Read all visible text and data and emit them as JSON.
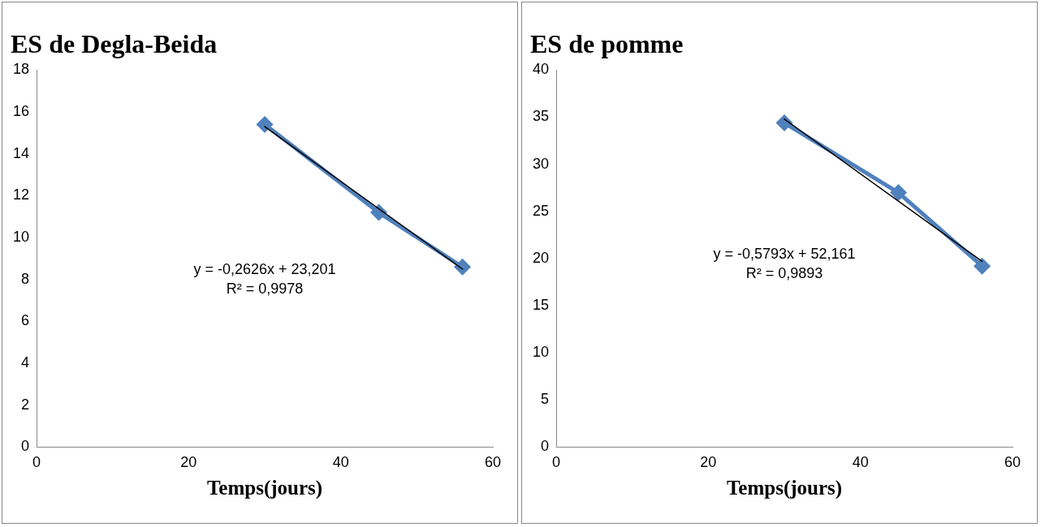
{
  "chart_data": [
    {
      "type": "line",
      "title": "ES de Degla-Beida",
      "xlabel": "Temps(jours)",
      "xlim": [
        0,
        60
      ],
      "xticks": [
        0,
        20,
        40,
        60
      ],
      "ylim": [
        0,
        18
      ],
      "yticks": [
        0,
        2,
        4,
        6,
        8,
        10,
        12,
        14,
        16,
        18
      ],
      "grid": false,
      "legend": false,
      "marker": "diamond",
      "line_style": "solid",
      "series": [
        {
          "color": "#4f81bd",
          "x": [
            30,
            45,
            56
          ],
          "values": [
            15.4,
            11.2,
            8.6
          ]
        },
        {
          "type": "line",
          "color": "#000000",
          "marker": "none",
          "x": [
            30,
            56
          ],
          "values": [
            15.3,
            8.5
          ]
        }
      ],
      "annotations": [
        "y = -0,2626x + 23,201",
        "R² = 0,9978"
      ]
    },
    {
      "type": "line",
      "title": "ES de pomme",
      "xlabel": "Temps(jours)",
      "xlim": [
        0,
        60
      ],
      "xticks": [
        0,
        20,
        40,
        60
      ],
      "ylim": [
        0,
        40
      ],
      "yticks": [
        0,
        5,
        10,
        15,
        20,
        25,
        30,
        35,
        40
      ],
      "grid": false,
      "legend": false,
      "marker": "diamond",
      "line_style": "solid",
      "series": [
        {
          "color": "#4f81bd",
          "x": [
            30,
            45,
            56
          ],
          "values": [
            34.4,
            27,
            19.2
          ]
        },
        {
          "type": "line",
          "color": "#000000",
          "marker": "none",
          "x": [
            30,
            56
          ],
          "values": [
            34.8,
            19.7
          ]
        }
      ],
      "annotations": [
        "y = -0,5793x + 52,161",
        "R² = 0,9893"
      ]
    }
  ]
}
